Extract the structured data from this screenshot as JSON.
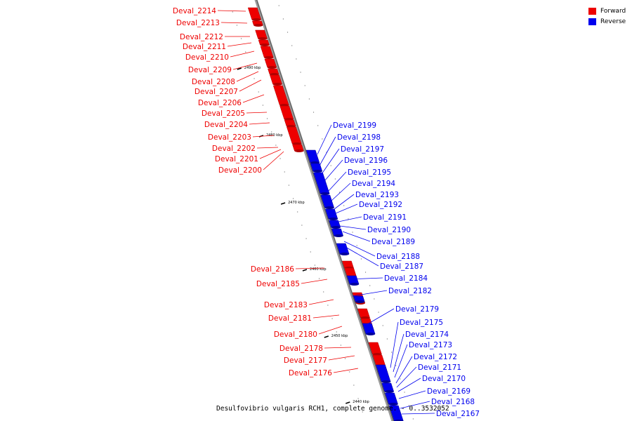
{
  "legend": {
    "forward_label": "Forward",
    "reverse_label": "Reverse",
    "forward_color": "#ee0000",
    "reverse_color": "#0000ee"
  },
  "caption": "Desulfovibrio vulgaris RCH1, complete genome. - 0..3532052",
  "ticks": [
    "2490 kbp",
    "2480 kbp",
    "2470 kbp",
    "2460 kbp",
    "2450 kbp",
    "2440 kbp"
  ],
  "genes": {
    "forward": [
      "Deval_2214",
      "Deval_2213",
      "Deval_2212",
      "Deval_2211",
      "Deval_2210",
      "Deval_2209",
      "Deval_2208",
      "Deval_2207",
      "Deval_2206",
      "Deval_2205",
      "Deval_2204",
      "Deval_2203",
      "Deval_2202",
      "Deval_2201",
      "Deval_2200",
      "Deval_2186",
      "Deval_2185",
      "Deval_2183",
      "Deval_2181",
      "Deval_2180",
      "Deval_2178",
      "Deval_2177",
      "Deval_2176"
    ],
    "reverse": [
      "Deval_2199",
      "Deval_2198",
      "Deval_2197",
      "Deval_2196",
      "Deval_2195",
      "Deval_2194",
      "Deval_2193",
      "Deval_2192",
      "Deval_2191",
      "Deval_2190",
      "Deval_2189",
      "Deval_2188",
      "Deval_2187",
      "Deval_2184",
      "Deval_2182",
      "Deval_2179",
      "Deval_2175",
      "Deval_2174",
      "Deval_2173",
      "Deval_2172",
      "Deval_2171",
      "Deval_2170",
      "Deval_2169",
      "Deval_2168",
      "Deval_2167"
    ]
  }
}
